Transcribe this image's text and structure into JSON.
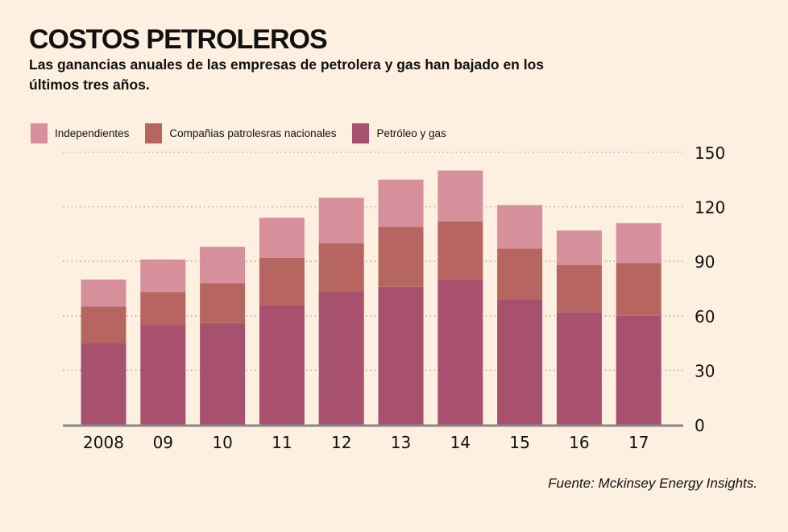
{
  "header": {
    "title": "COSTOS PETROLEROS",
    "subtitle": "Las ganancias anuales de las empresas de petrolera y gas han bajado en los últimos tres años."
  },
  "source": "Fuente: Mckinsey Energy Insights.",
  "colors": {
    "background": "#fdf0e0",
    "independientes": "#d5909c",
    "nacionales": "#b66560",
    "petroleo": "#a7516f",
    "axis": "#878787",
    "grid": "#9a9a9a"
  },
  "chart_data": {
    "type": "bar",
    "stacked": true,
    "title": "COSTOS PETROLEROS",
    "subtitle": "Las ganancias anuales de las empresas de petrolera y gas han bajado en los últimos tres años.",
    "xlabel": "",
    "ylabel": "",
    "categories": [
      "2008",
      "09",
      "10",
      "11",
      "12",
      "13",
      "14",
      "15",
      "16",
      "17"
    ],
    "series": [
      {
        "name": "Petróleo y gas",
        "color_key": "petroleo",
        "values": [
          45,
          55,
          56,
          66,
          73,
          76,
          80,
          69,
          62,
          60
        ]
      },
      {
        "name": "Compañias patrolesras nacionales",
        "color_key": "nacionales",
        "values": [
          20,
          18,
          22,
          26,
          27,
          33,
          32,
          28,
          26,
          29
        ]
      },
      {
        "name": "Independientes",
        "color_key": "independientes",
        "values": [
          15,
          18,
          20,
          22,
          25,
          26,
          28,
          24,
          19,
          22
        ]
      }
    ],
    "totals": [
      80,
      91,
      98,
      114,
      125,
      135,
      140,
      121,
      107,
      111
    ],
    "ylim": [
      0,
      150
    ],
    "yticks": [
      0,
      30,
      60,
      90,
      120,
      150
    ],
    "y_axis_side": "right",
    "grid": true,
    "grid_style": "dotted",
    "legend": {
      "placement": "top-left",
      "entries": [
        "Independientes",
        "Compañias patrolesras nacionales",
        "Petróleo y gas"
      ]
    }
  }
}
